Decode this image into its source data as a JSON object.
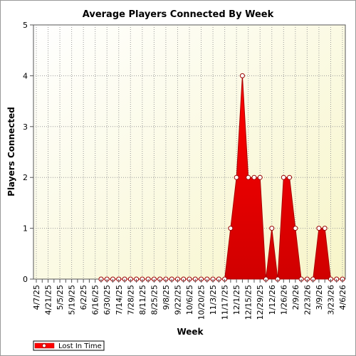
{
  "chart_data": {
    "type": "area",
    "title": "Average Players Connected By Week",
    "xlabel": "Week",
    "ylabel": "Players Connected",
    "ylim": [
      0,
      5
    ],
    "yticks": [
      "0",
      "1",
      "2",
      "3",
      "4",
      "5"
    ],
    "x_tick_labels": [
      "4/7/25",
      "4/21/25",
      "5/5/25",
      "5/19/25",
      "6/2/25",
      "6/16/25",
      "6/30/25",
      "7/14/25",
      "7/28/25",
      "8/11/25",
      "8/25/25",
      "9/8/25",
      "9/22/25",
      "10/6/25",
      "10/20/25",
      "11/3/25",
      "11/17/25",
      "12/1/25",
      "12/15/25",
      "12/29/25",
      "1/12/26",
      "1/26/26",
      "2/9/26",
      "2/23/26",
      "3/9/26",
      "3/23/26",
      "4/6/26"
    ],
    "grid": true,
    "legend_position": "bottom-left",
    "series": [
      {
        "name": "Lost In Time",
        "color": "#ff0000",
        "first_index": 11,
        "values": [
          0,
          0,
          0,
          0,
          0,
          0,
          0,
          0,
          0,
          0,
          0,
          0,
          0,
          0,
          0,
          0,
          0,
          0,
          0,
          0,
          0,
          0,
          1,
          2,
          4,
          2,
          2,
          2,
          0,
          1,
          0,
          2,
          2,
          1,
          0,
          0,
          0,
          1,
          1,
          0,
          0,
          0
        ]
      }
    ]
  }
}
